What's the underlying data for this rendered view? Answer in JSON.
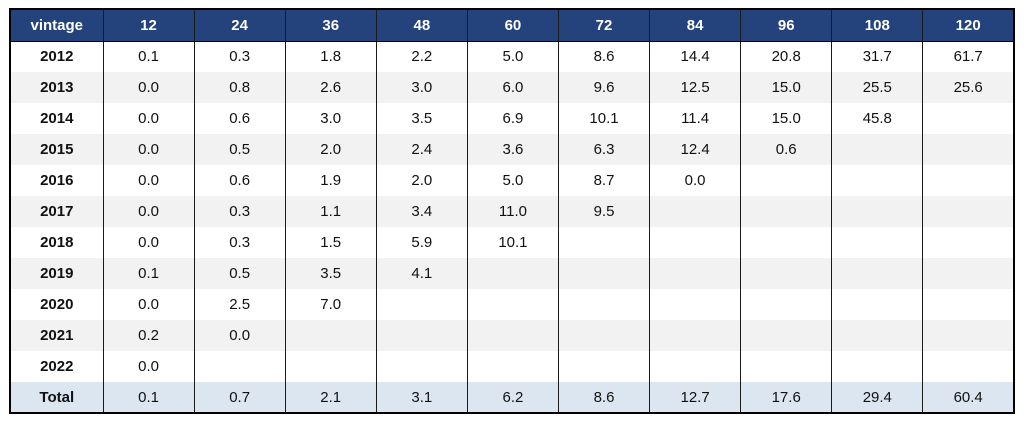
{
  "chart_data": {
    "type": "table",
    "corner_label": "vintage",
    "columns": [
      "12",
      "24",
      "36",
      "48",
      "60",
      "72",
      "84",
      "96",
      "108",
      "120"
    ],
    "rows": [
      {
        "label": "2012",
        "values": [
          "0.1",
          "0.3",
          "1.8",
          "2.2",
          "5.0",
          "8.6",
          "14.4",
          "20.8",
          "31.7",
          "61.7"
        ]
      },
      {
        "label": "2013",
        "values": [
          "0.0",
          "0.8",
          "2.6",
          "3.0",
          "6.0",
          "9.6",
          "12.5",
          "15.0",
          "25.5",
          "25.6"
        ]
      },
      {
        "label": "2014",
        "values": [
          "0.0",
          "0.6",
          "3.0",
          "3.5",
          "6.9",
          "10.1",
          "11.4",
          "15.0",
          "45.8",
          ""
        ]
      },
      {
        "label": "2015",
        "values": [
          "0.0",
          "0.5",
          "2.0",
          "2.4",
          "3.6",
          "6.3",
          "12.4",
          "0.6",
          "",
          ""
        ]
      },
      {
        "label": "2016",
        "values": [
          "0.0",
          "0.6",
          "1.9",
          "2.0",
          "5.0",
          "8.7",
          "0.0",
          "",
          "",
          ""
        ]
      },
      {
        "label": "2017",
        "values": [
          "0.0",
          "0.3",
          "1.1",
          "3.4",
          "11.0",
          "9.5",
          "",
          "",
          "",
          ""
        ]
      },
      {
        "label": "2018",
        "values": [
          "0.0",
          "0.3",
          "1.5",
          "5.9",
          "10.1",
          "",
          "",
          "",
          "",
          ""
        ]
      },
      {
        "label": "2019",
        "values": [
          "0.1",
          "0.5",
          "3.5",
          "4.1",
          "",
          "",
          "",
          "",
          "",
          ""
        ]
      },
      {
        "label": "2020",
        "values": [
          "0.0",
          "2.5",
          "7.0",
          "",
          "",
          "",
          "",
          "",
          "",
          ""
        ]
      },
      {
        "label": "2021",
        "values": [
          "0.2",
          "0.0",
          "",
          "",
          "",
          "",
          "",
          "",
          "",
          ""
        ]
      },
      {
        "label": "2022",
        "values": [
          "0.0",
          "",
          "",
          "",
          "",
          "",
          "",
          "",
          "",
          ""
        ]
      }
    ],
    "total_row": {
      "label": "Total",
      "values": [
        "0.1",
        "0.7",
        "2.1",
        "3.1",
        "6.2",
        "8.6",
        "12.7",
        "17.6",
        "29.4",
        "60.4"
      ]
    }
  },
  "colors": {
    "header_bg": "#24427B",
    "header_text": "#FFFFFF",
    "row_bg": "#FFFFFF",
    "row_alt_bg": "#F2F2F2",
    "total_row_bg": "#DCE6F1",
    "border": "#000000",
    "grid": "#1A1A1A",
    "text": "#111111"
  }
}
